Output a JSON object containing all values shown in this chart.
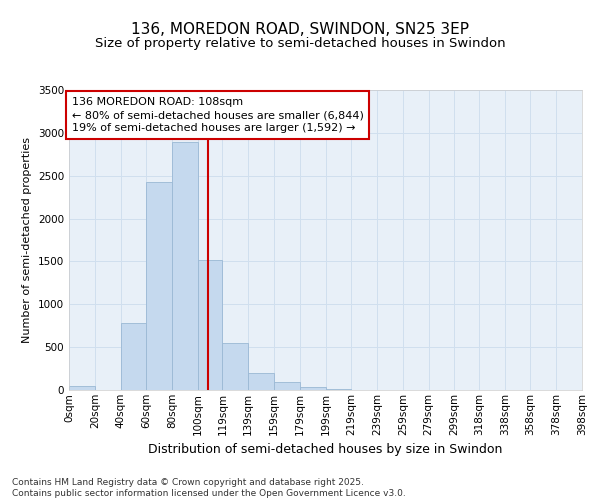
{
  "title_line1": "136, MOREDON ROAD, SWINDON, SN25 3EP",
  "title_line2": "Size of property relative to semi-detached houses in Swindon",
  "xlabel": "Distribution of semi-detached houses by size in Swindon",
  "ylabel": "Number of semi-detached properties",
  "bar_color": "#c5d9ee",
  "bar_edge_color": "#9ab8d4",
  "grid_color": "#d0dfee",
  "background_color": "#e8f0f8",
  "annotation_box_text": "136 MOREDON ROAD: 108sqm\n← 80% of semi-detached houses are smaller (6,844)\n19% of semi-detached houses are larger (1,592) →",
  "annotation_box_color": "#ffffff",
  "annotation_box_edge_color": "#cc0000",
  "vline_x": 108,
  "vline_color": "#cc0000",
  "bin_edges": [
    0,
    20,
    40,
    60,
    80,
    100,
    119,
    139,
    159,
    179,
    199,
    219,
    239,
    259,
    279,
    299,
    318,
    338,
    358,
    378,
    398
  ],
  "bin_labels": [
    "0sqm",
    "20sqm",
    "40sqm",
    "60sqm",
    "80sqm",
    "100sqm",
    "119sqm",
    "139sqm",
    "159sqm",
    "179sqm",
    "199sqm",
    "219sqm",
    "239sqm",
    "259sqm",
    "279sqm",
    "299sqm",
    "318sqm",
    "338sqm",
    "358sqm",
    "378sqm",
    "398sqm"
  ],
  "bar_heights": [
    50,
    0,
    780,
    2430,
    2890,
    1520,
    550,
    200,
    90,
    40,
    10,
    5,
    0,
    0,
    0,
    0,
    0,
    0,
    0,
    0
  ],
  "ylim": [
    0,
    3500
  ],
  "yticks": [
    0,
    500,
    1000,
    1500,
    2000,
    2500,
    3000,
    3500
  ],
  "footer_text": "Contains HM Land Registry data © Crown copyright and database right 2025.\nContains public sector information licensed under the Open Government Licence v3.0.",
  "title_fontsize": 11,
  "subtitle_fontsize": 9.5,
  "xlabel_fontsize": 9,
  "ylabel_fontsize": 8,
  "tick_fontsize": 7.5,
  "annotation_fontsize": 8,
  "footer_fontsize": 6.5
}
